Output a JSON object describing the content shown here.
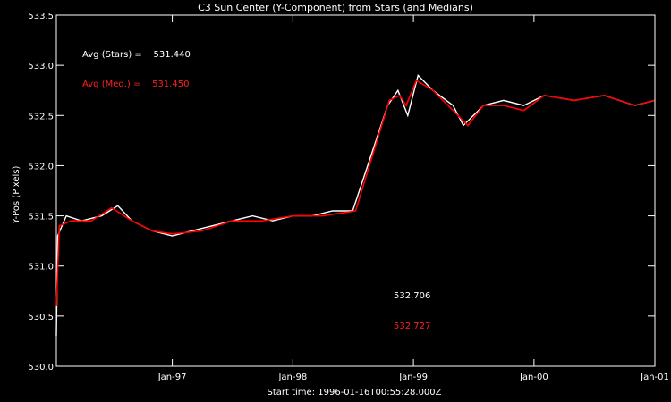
{
  "chart_data": {
    "type": "line",
    "title": "C3 Sun Center (Y-Component) from Stars (and Medians)",
    "ylabel": "Y-Pos (Pixels)",
    "xlabel": "Start time: 1996-01-16T00:55:28.000Z",
    "xlim": [
      "1996-01-16",
      "2001-01-01"
    ],
    "ylim": [
      530.0,
      533.5
    ],
    "x_ticks": [
      "Jan-97",
      "Jan-98",
      "Jan-99",
      "Jan-00",
      "Jan-01"
    ],
    "x_tick_dates": [
      "1997-01-01",
      "1998-01-01",
      "1999-01-01",
      "2000-01-01",
      "2001-01-01"
    ],
    "y_ticks": [
      "530.0",
      "530.5",
      "531.0",
      "531.5",
      "532.0",
      "532.5",
      "533.0",
      "533.5"
    ],
    "y_tick_values": [
      530.0,
      530.5,
      531.0,
      531.5,
      532.0,
      532.5,
      533.0,
      533.5
    ],
    "annotations": {
      "avg_stars": "Avg (Stars) =    531.440",
      "avg_med": "Avg (Med.) =    531.450",
      "final_stars": "532.706",
      "final_med": "532.727"
    },
    "series": [
      {
        "color": "#ffffff",
        "points": [
          [
            "1996-01-16",
            530.3
          ],
          [
            "1996-01-20",
            531.3
          ],
          [
            "1996-02-15",
            531.5
          ],
          [
            "1996-04-01",
            531.45
          ],
          [
            "1996-06-01",
            531.5
          ],
          [
            "1996-07-20",
            531.6
          ],
          [
            "1996-09-01",
            531.45
          ],
          [
            "1996-11-01",
            531.35
          ],
          [
            "1997-01-01",
            531.3
          ],
          [
            "1997-03-01",
            531.35
          ],
          [
            "1997-05-01",
            531.4
          ],
          [
            "1997-07-01",
            531.45
          ],
          [
            "1997-09-01",
            531.5
          ],
          [
            "1997-11-01",
            531.45
          ],
          [
            "1998-01-01",
            531.5
          ],
          [
            "1998-03-01",
            531.5
          ],
          [
            "1998-05-01",
            531.55
          ],
          [
            "1998-07-01",
            531.55
          ],
          [
            "1998-10-15",
            532.6
          ],
          [
            "1998-11-15",
            532.75
          ],
          [
            "1998-12-15",
            532.5
          ],
          [
            "1999-01-15",
            532.9
          ],
          [
            "1999-03-01",
            532.75
          ],
          [
            "1999-05-01",
            532.6
          ],
          [
            "1999-06-01",
            532.4
          ],
          [
            "1999-08-01",
            532.6
          ],
          [
            "1999-10-01",
            532.65
          ],
          [
            "1999-12-01",
            532.6
          ],
          [
            "2000-02-01",
            532.7
          ],
          [
            "2000-05-01",
            532.65
          ],
          [
            "2000-08-01",
            532.7
          ],
          [
            "2000-11-01",
            532.6
          ],
          [
            "2000-12-31",
            532.65
          ]
        ]
      },
      {
        "color": "#ff0000",
        "points": [
          [
            "1996-01-16",
            530.6
          ],
          [
            "1996-01-25",
            531.4
          ],
          [
            "1996-03-01",
            531.45
          ],
          [
            "1996-05-01",
            531.45
          ],
          [
            "1996-07-01",
            531.58
          ],
          [
            "1996-09-01",
            531.45
          ],
          [
            "1996-11-01",
            531.35
          ],
          [
            "1997-01-01",
            531.32
          ],
          [
            "1997-04-01",
            531.35
          ],
          [
            "1997-07-01",
            531.45
          ],
          [
            "1997-10-01",
            531.45
          ],
          [
            "1998-01-01",
            531.5
          ],
          [
            "1998-04-01",
            531.5
          ],
          [
            "1998-07-10",
            531.55
          ],
          [
            "1998-10-20",
            532.65
          ],
          [
            "1998-11-20",
            532.7
          ],
          [
            "1998-12-10",
            532.6
          ],
          [
            "1999-01-10",
            532.85
          ],
          [
            "1999-03-01",
            532.75
          ],
          [
            "1999-05-01",
            532.55
          ],
          [
            "1999-06-15",
            532.4
          ],
          [
            "1999-08-01",
            532.6
          ],
          [
            "1999-10-01",
            532.6
          ],
          [
            "1999-12-01",
            532.55
          ],
          [
            "2000-02-01",
            532.7
          ],
          [
            "2000-05-01",
            532.65
          ],
          [
            "2000-08-01",
            532.7
          ],
          [
            "2000-11-01",
            532.6
          ],
          [
            "2000-12-31",
            532.65
          ]
        ]
      }
    ]
  }
}
